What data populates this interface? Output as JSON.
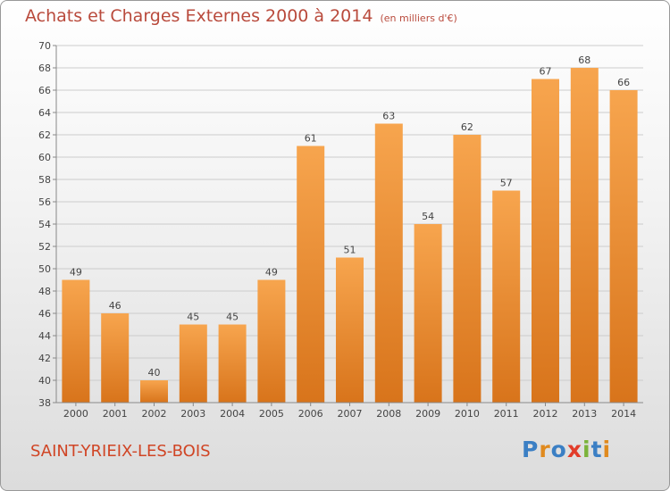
{
  "header": {
    "title": "Achats et Charges Externes 2000 à 2014",
    "subtitle": "(en milliers d'€)"
  },
  "footer": {
    "commune": "SAINT-YRIEIX-LES-BOIS",
    "logo_text": "Proxiti",
    "logo_letters": [
      {
        "ch": "P",
        "color": "#3b7fc4"
      },
      {
        "ch": "r",
        "color": "#e08a1e"
      },
      {
        "ch": "o",
        "color": "#3b7fc4"
      },
      {
        "ch": "x",
        "color": "#e23c2a"
      },
      {
        "ch": "i",
        "color": "#7bb33a"
      },
      {
        "ch": "t",
        "color": "#3b7fc4"
      },
      {
        "ch": "i",
        "color": "#e08a1e"
      }
    ]
  },
  "chart_data": {
    "type": "bar",
    "title": "Achats et Charges Externes 2000 à 2014",
    "subtitle": "(en milliers d'€)",
    "categories": [
      "2000",
      "2001",
      "2002",
      "2003",
      "2004",
      "2005",
      "2006",
      "2007",
      "2008",
      "2009",
      "2010",
      "2011",
      "2012",
      "2013",
      "2014"
    ],
    "values": [
      49,
      46,
      40,
      45,
      45,
      49,
      61,
      51,
      63,
      54,
      62,
      57,
      67,
      68,
      66
    ],
    "ylim": [
      38,
      70
    ],
    "yticks": [
      38,
      40,
      42,
      44,
      46,
      48,
      50,
      52,
      54,
      56,
      58,
      60,
      62,
      64,
      66,
      68,
      70
    ],
    "grid": true,
    "legend": "none",
    "colors": {
      "bar_light": "#f7a54e",
      "bar_dark": "#d8741b",
      "axis": "#888888",
      "grid": "#cccccc"
    }
  }
}
